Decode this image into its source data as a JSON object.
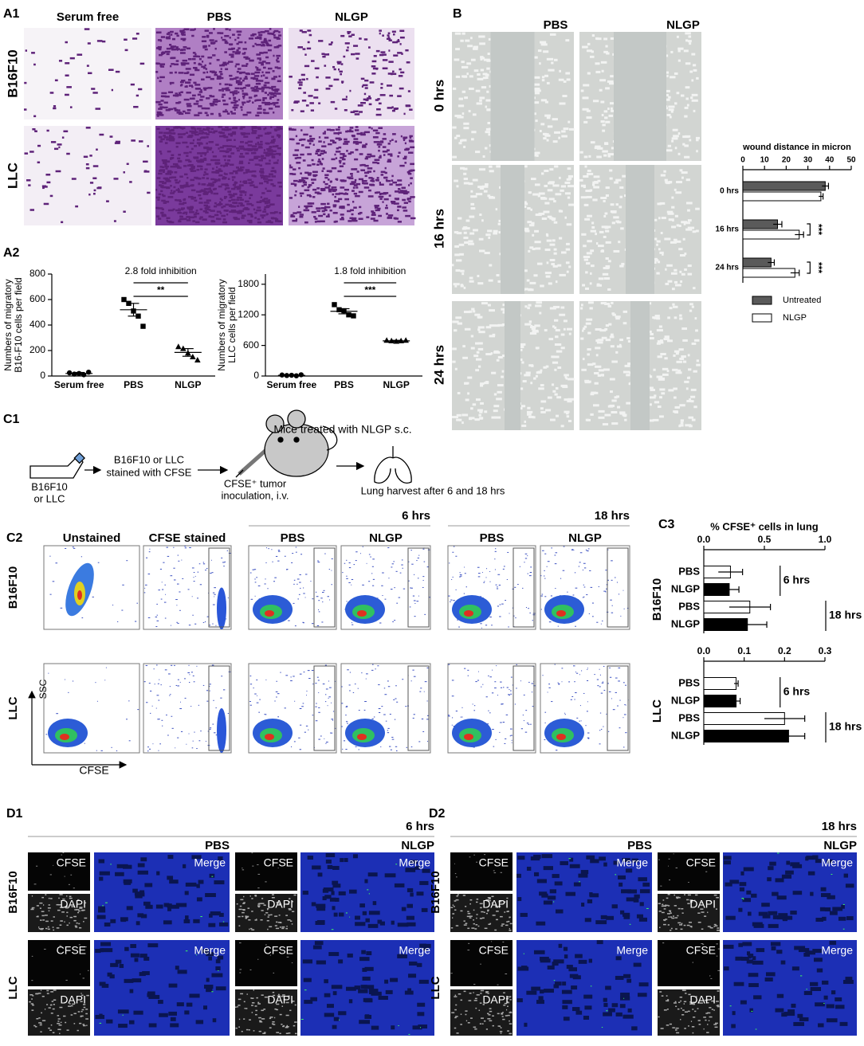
{
  "figure": {
    "a1": {
      "label": "A1",
      "columns": [
        "Serum free",
        "PBS",
        "NLGP"
      ],
      "rows": [
        "B16F10",
        "LLC"
      ]
    },
    "a2": {
      "label": "A2"
    },
    "b": {
      "label": "B",
      "columns": [
        "PBS",
        "NLGP"
      ],
      "rows": [
        "0 hrs",
        "16 hrs",
        "24 hrs"
      ]
    },
    "c1": {
      "label": "C1",
      "title": "Mice treated with NLGP s.c.",
      "cells": [
        "B16F10",
        "or LLC"
      ],
      "stain": [
        "B16F10 or LLC",
        "stained with CFSE"
      ],
      "inoculation": [
        "CFSE⁺ tumor",
        "inoculation, i.v."
      ],
      "harvest": "Lung harvest after 6 and 18 hrs"
    },
    "c2": {
      "label": "C2",
      "columns": [
        "Unstained",
        "CFSE stained",
        "PBS",
        "NLGP",
        "PBS",
        "NLGP"
      ],
      "times": [
        "6 hrs",
        "18 hrs"
      ],
      "rows": [
        "B16F10",
        "LLC"
      ],
      "axes": [
        "SSC",
        "CFSE"
      ]
    },
    "c3": {
      "label": "C3"
    },
    "d1": {
      "label": "D1",
      "time": "6 hrs",
      "groups": [
        "PBS",
        "NLGP"
      ],
      "rows": [
        "B16F10",
        "LLC"
      ],
      "channels": [
        "CFSE",
        "DAPI",
        "Merge"
      ]
    },
    "d2": {
      "label": "D2",
      "time": "18 hrs",
      "groups": [
        "PBS",
        "NLGP"
      ],
      "rows": [
        "B16F10",
        "LLC"
      ],
      "channels": [
        "CFSE",
        "DAPI",
        "Merge"
      ]
    }
  },
  "chart_data": [
    {
      "type": "dot",
      "ylabel": [
        "Numbers of migratory",
        "B16-F10 cells per field"
      ],
      "categories": [
        "Serum free",
        "PBS",
        "NLGP"
      ],
      "values": [
        20,
        520,
        185
      ],
      "errors": [
        8,
        50,
        30
      ],
      "points": [
        [
          25,
          15,
          20,
          10,
          30
        ],
        [
          600,
          570,
          510,
          470,
          390
        ],
        [
          230,
          215,
          180,
          150,
          125
        ]
      ],
      "ylim": [
        0,
        800
      ],
      "yticks": [
        0,
        200,
        400,
        600,
        800
      ],
      "annotation": "2.8 fold inhibition",
      "significance": "**"
    },
    {
      "type": "dot",
      "ylabel": [
        "Numbers of migratory",
        "LLC cells per field"
      ],
      "categories": [
        "Serum free",
        "PBS",
        "NLGP"
      ],
      "values": [
        15,
        1270,
        690
      ],
      "errors": [
        8,
        50,
        10
      ],
      "points": [
        [
          20,
          10,
          15,
          5,
          25
        ],
        [
          1400,
          1300,
          1280,
          1200,
          1180
        ],
        [
          700,
          690,
          680,
          690,
          700
        ]
      ],
      "ylim": [
        0,
        2000
      ],
      "yticks": [
        0,
        600,
        1200,
        1800
      ],
      "annotation": "1.8 fold inhibition",
      "significance": "***"
    },
    {
      "type": "hbar",
      "title": "wound distance in micron",
      "categories": [
        "0 hrs",
        "16 hrs",
        "24 hrs"
      ],
      "series": [
        {
          "name": "Untreated",
          "color": "#5a5a5a",
          "values": [
            38,
            16,
            13
          ],
          "errors": [
            1.5,
            2,
            1.5
          ]
        },
        {
          "name": "NLGP",
          "color": "#ffffff",
          "values": [
            36,
            26,
            24
          ],
          "errors": [
            1,
            2,
            2
          ]
        }
      ],
      "significance": [
        null,
        "***",
        "***"
      ],
      "xlim": [
        0,
        50
      ],
      "xticks": [
        0,
        10,
        20,
        30,
        40,
        50
      ],
      "legend": true
    },
    {
      "type": "hbar",
      "title": "% CFSE⁺ cells in lung",
      "row_label": "B16F10",
      "categories": [
        "PBS",
        "NLGP",
        "PBS",
        "NLGP"
      ],
      "values": [
        0.22,
        0.21,
        0.38,
        0.36
      ],
      "errors": [
        0.1,
        0.08,
        0.17,
        0.16
      ],
      "colors": [
        "#ffffff",
        "#000000",
        "#ffffff",
        "#000000"
      ],
      "groups": [
        "6 hrs",
        "18 hrs"
      ],
      "xlim": [
        0,
        1
      ],
      "xticks": [
        {
          "value": 0,
          "label": "0.0"
        },
        0.5,
        {
          "value": 1,
          "label": "1.0"
        }
      ]
    },
    {
      "type": "hbar",
      "row_label": "LLC",
      "categories": [
        "PBS",
        "NLGP",
        "PBS",
        "NLGP"
      ],
      "values": [
        0.08,
        0.08,
        0.2,
        0.21
      ],
      "errors": [
        0.005,
        0.01,
        0.05,
        0.04
      ],
      "colors": [
        "#ffffff",
        "#000000",
        "#ffffff",
        "#000000"
      ],
      "groups": [
        "6 hrs",
        "18 hrs"
      ],
      "xlim": [
        0,
        0.3
      ],
      "xticks": [
        {
          "value": 0,
          "label": "0.0"
        },
        0.1,
        0.2,
        0.3
      ]
    }
  ]
}
